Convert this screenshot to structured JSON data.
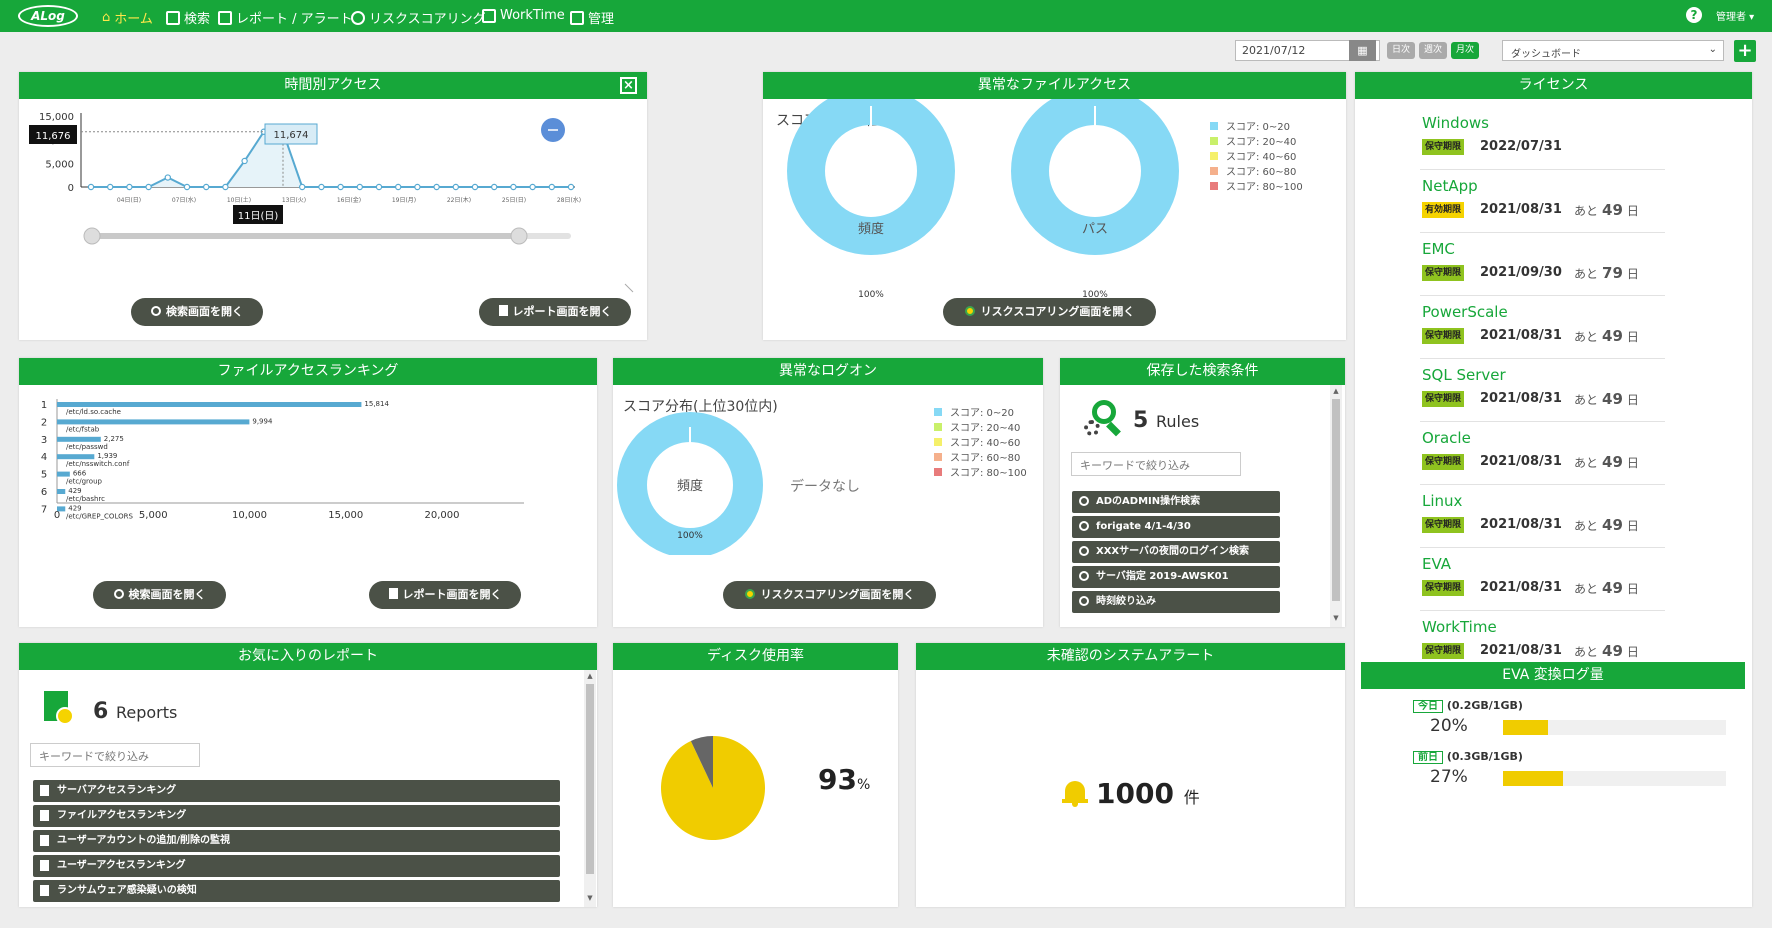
{
  "nav": {
    "logo": "ALog",
    "home": "ホーム",
    "search": "検索",
    "reports": "レポート / アラート",
    "risk": "リスクスコアリング",
    "worktime": "WorkTime",
    "admin": "管理",
    "user": "管理者",
    "help": "?"
  },
  "toolbar": {
    "date": "2021/07/12",
    "daily": "日次",
    "weekly": "週次",
    "monthly": "月次",
    "view": "ダッシュボード",
    "add": "+"
  },
  "hourly": {
    "title": "時間別アクセス",
    "tooltip_y": "11,676",
    "tooltip_value": "11,674",
    "tooltip_x": "11日(日)",
    "btn_search": "検索画面を開く",
    "btn_report": "レポート画面を開く",
    "chart_data": {
      "type": "area",
      "yticks": [
        "15,000",
        "10,000",
        "5,000",
        "0"
      ],
      "ylim": [
        0,
        15000
      ],
      "xlabels": [
        "04日(日)",
        "07日(水)",
        "10日(土)",
        "13日(火)",
        "16日(金)",
        "19日(月)",
        "22日(木)",
        "25日(日)",
        "28日(水)"
      ],
      "values": [
        0,
        0,
        0,
        0,
        2000,
        0,
        0,
        0,
        5500,
        11674,
        11674,
        0,
        0,
        0,
        0,
        0,
        0,
        0,
        0,
        0,
        0,
        0,
        0,
        0,
        0,
        0
      ]
    }
  },
  "abnormal_file": {
    "title": "異常なファイルアクセス",
    "subtitle": "スコア分布(上位30位内)",
    "donut1_label": "頻度",
    "donut1_pct": "100%",
    "donut2_label": "パス",
    "donut2_pct": "100%",
    "legend": [
      "スコア: 0~20",
      "スコア: 20~40",
      "スコア: 40~60",
      "スコア: 60~80",
      "スコア: 80~100"
    ],
    "legend_colors": [
      "#86d9f5",
      "#c9f06a",
      "#f5f06a",
      "#f5b08c",
      "#e87b7b"
    ],
    "btn_risk": "リスクスコアリング画面を開く"
  },
  "license": {
    "title": "ライセンス",
    "remain_prefix": "あと",
    "remain_suffix": "日",
    "items": [
      {
        "name": "Windows",
        "badge": "保守期限",
        "date": "2022/07/31",
        "days": ""
      },
      {
        "name": "NetApp",
        "badge": "有効期限",
        "date": "2021/08/31",
        "days": "49"
      },
      {
        "name": "EMC",
        "badge": "保守期限",
        "date": "2021/09/30",
        "days": "79"
      },
      {
        "name": "PowerScale",
        "badge": "保守期限",
        "date": "2021/08/31",
        "days": "49"
      },
      {
        "name": "SQL Server",
        "badge": "保守期限",
        "date": "2021/08/31",
        "days": "49"
      },
      {
        "name": "Oracle",
        "badge": "保守期限",
        "date": "2021/08/31",
        "days": "49"
      },
      {
        "name": "Linux",
        "badge": "保守期限",
        "date": "2021/08/31",
        "days": "49"
      },
      {
        "name": "EVA",
        "badge": "保守期限",
        "date": "2021/08/31",
        "days": "49"
      },
      {
        "name": "WorkTime",
        "badge": "保守期限",
        "date": "2021/08/31",
        "days": "49"
      }
    ]
  },
  "eva": {
    "title": "EVA 変換ログ量",
    "today_label": "今日",
    "today_size": "(0.2GB/1GB)",
    "today_pct": "20%",
    "today_value": 0.2,
    "yesterday_label": "前日",
    "yesterday_size": "(0.3GB/1GB)",
    "yesterday_pct": "27%",
    "yesterday_value": 0.27
  },
  "file_ranking": {
    "title": "ファイルアクセスランキング",
    "btn_search": "検索画面を開く",
    "btn_report": "レポート画面を開く",
    "chart_data": {
      "type": "bar",
      "ranks": [
        "1",
        "2",
        "3",
        "4",
        "5",
        "6",
        "7"
      ],
      "categories": [
        "/etc/ld.so.cache",
        "/etc/fstab",
        "/etc/passwd",
        "/etc/nsswitch.conf",
        "/etc/group",
        "/etc/bashrc",
        "/etc/GREP_COLORS"
      ],
      "values": [
        15814,
        9994,
        2275,
        1939,
        666,
        429,
        429
      ],
      "value_labels": [
        "15,814",
        "9,994",
        "2,275",
        "1,939",
        "666",
        "429",
        "429"
      ],
      "xticks": [
        "0",
        "5,000",
        "10,000",
        "15,000",
        "20,000"
      ],
      "xlim": [
        0,
        20000
      ]
    }
  },
  "abnormal_logon": {
    "title": "異常なログオン",
    "subtitle": "スコア分布(上位30位内)",
    "donut_label": "頻度",
    "donut_pct": "100%",
    "no_data": "データなし",
    "legend": [
      "スコア: 0~20",
      "スコア: 20~40",
      "スコア: 40~60",
      "スコア: 60~80",
      "スコア: 80~100"
    ],
    "btn_risk": "リスクスコアリング画面を開く"
  },
  "saved_search": {
    "title": "保存した検索条件",
    "count": "5",
    "unit": "Rules",
    "placeholder": "キーワードで絞り込み",
    "items": [
      "ADのADMIN操作検索",
      "forigate 4/1-4/30",
      "XXXサーバの夜間のログイン検索",
      "サーバ指定 2019-AWSK01",
      "時刻絞り込み"
    ]
  },
  "favorites": {
    "title": "お気に入りのレポート",
    "count": "6",
    "unit": "Reports",
    "placeholder": "キーワードで絞り込み",
    "items": [
      "サーバアクセスランキング",
      "ファイルアクセスランキング",
      "ユーザーアカウントの追加/削除の監視",
      "ユーザーアクセスランキング",
      "ランサムウェア感染疑いの検知"
    ]
  },
  "disk": {
    "title": "ディスク使用率",
    "value": "93",
    "unit": "%",
    "used": 0.93,
    "color_used": "#f0cc00",
    "color_free": "#666666"
  },
  "alerts": {
    "title": "未確認のシステムアラート",
    "count": "1000",
    "unit": "件"
  }
}
